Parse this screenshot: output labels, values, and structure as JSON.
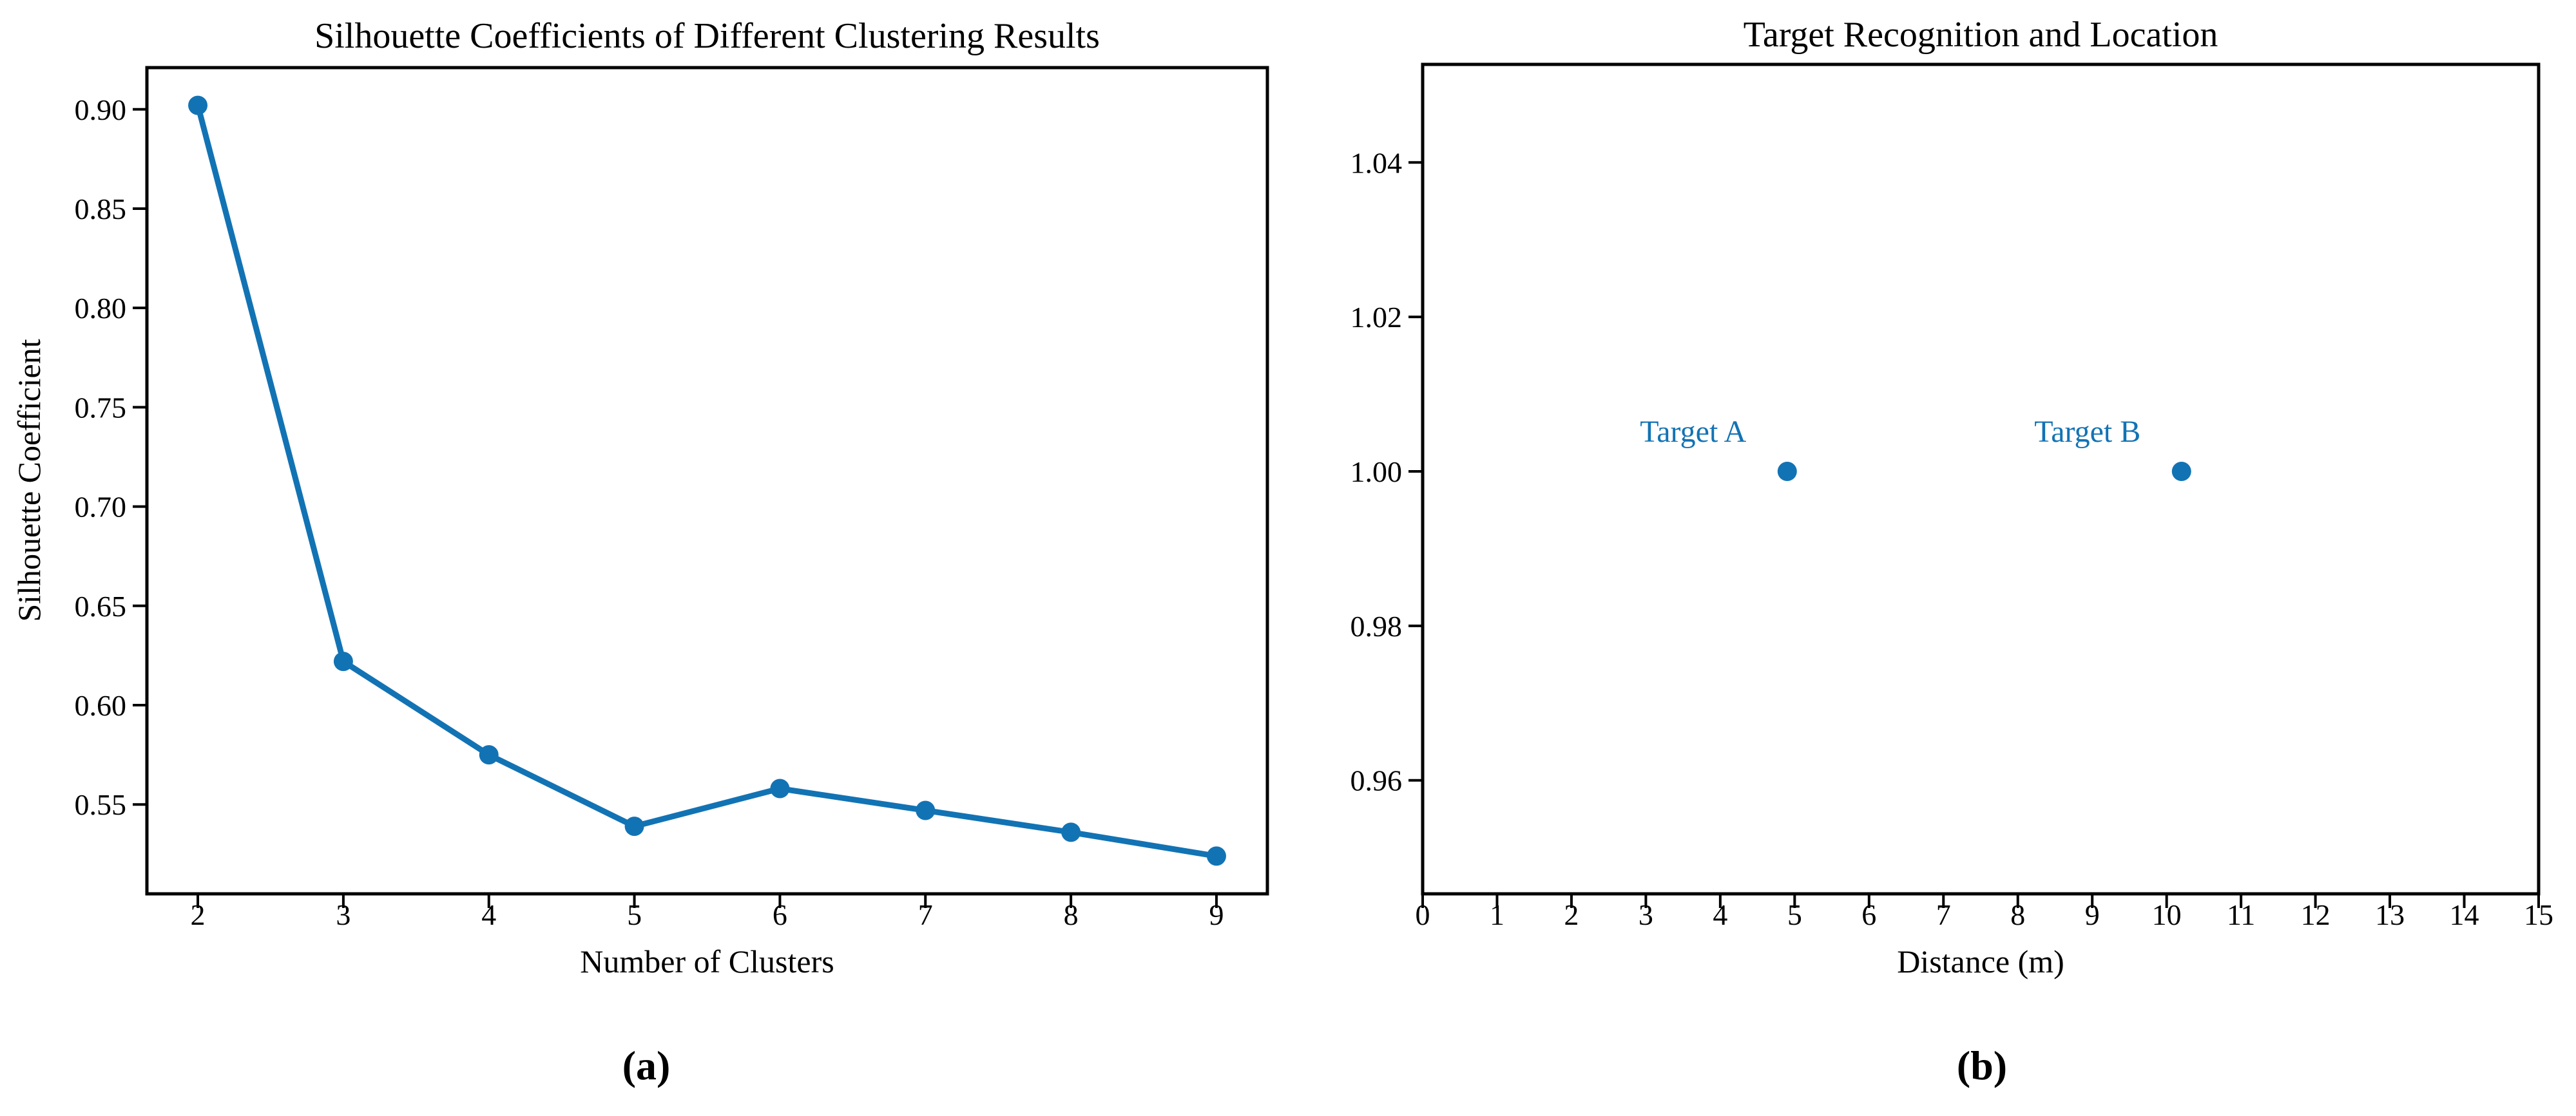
{
  "figure": {
    "background_color": "#ffffff",
    "text_color": "#000000",
    "accent_color": "#1273b4",
    "captions": [
      {
        "label": "(a)"
      },
      {
        "label": "(b)"
      }
    ]
  },
  "chart_data": [
    {
      "type": "line",
      "title": "Silhouette Coefficients of Different Clustering Results",
      "xlabel": "Number of Clusters",
      "ylabel": "Silhouette Coefficient",
      "categories": [
        2,
        3,
        4,
        5,
        6,
        7,
        8,
        9
      ],
      "values": [
        0.902,
        0.622,
        0.575,
        0.539,
        0.558,
        0.547,
        0.536,
        0.524
      ],
      "xlim": [
        1.65,
        9.35
      ],
      "ylim": [
        0.505,
        0.921
      ],
      "xticks": [
        2,
        3,
        4,
        5,
        6,
        7,
        8,
        9
      ],
      "yticks": [
        0.55,
        0.6,
        0.65,
        0.7,
        0.75,
        0.8,
        0.85,
        0.9
      ],
      "ytick_decimals": 2,
      "grid": false,
      "legend": "none",
      "line_color": "#1273b4",
      "marker": "circle"
    },
    {
      "type": "scatter",
      "title": "Target Recognition and Location",
      "xlabel": "Distance (m)",
      "ylabel": "",
      "points": [
        {
          "x": 4.9,
          "y": 1.0,
          "label": "Target A"
        },
        {
          "x": 10.2,
          "y": 1.0,
          "label": "Target B"
        }
      ],
      "xlim": [
        0,
        15
      ],
      "ylim": [
        0.9453,
        1.0527
      ],
      "xticks": [
        0,
        1,
        2,
        3,
        4,
        5,
        6,
        7,
        8,
        9,
        10,
        11,
        12,
        13,
        14,
        15
      ],
      "yticks": [
        0.96,
        0.98,
        1.0,
        1.02,
        1.04
      ],
      "ytick_decimals": 2,
      "grid": false,
      "legend": "none",
      "point_color": "#1273b4",
      "annotation_color": "#1273b4"
    }
  ]
}
